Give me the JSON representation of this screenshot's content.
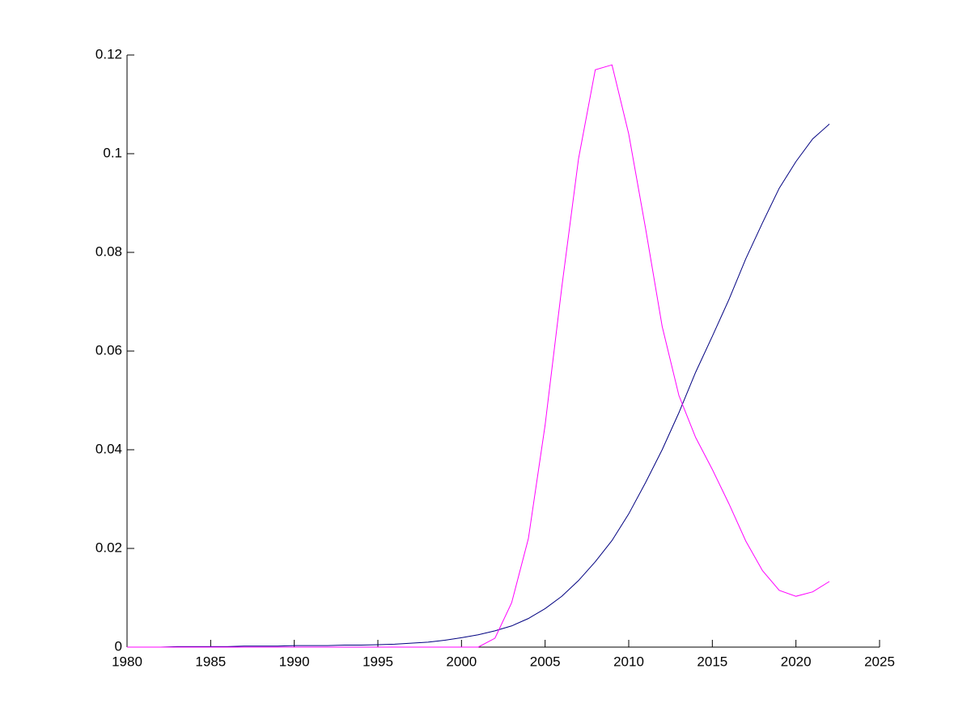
{
  "chart_data": {
    "type": "line",
    "x": [
      1980,
      1981,
      1982,
      1983,
      1984,
      1985,
      1986,
      1987,
      1988,
      1989,
      1990,
      1991,
      1992,
      1993,
      1994,
      1995,
      1996,
      1997,
      1998,
      1999,
      2000,
      2001,
      2002,
      2003,
      2004,
      2005,
      2006,
      2007,
      2008,
      2009,
      2010,
      2011,
      2012,
      2013,
      2014,
      2015,
      2016,
      2017,
      2018,
      2019,
      2020,
      2021,
      2022
    ],
    "series": [
      {
        "color": "#000080",
        "values": [
          0,
          0,
          0,
          0.0001,
          0.0001,
          0.0001,
          0.0001,
          0.0002,
          0.0002,
          0.0002,
          0.0003,
          0.0003,
          0.0003,
          0.0004,
          0.0004,
          0.0005,
          0.0006,
          0.0008,
          0.001,
          0.0014,
          0.0019,
          0.0025,
          0.0033,
          0.0043,
          0.0058,
          0.0078,
          0.0103,
          0.0135,
          0.0173,
          0.0216,
          0.027,
          0.0333,
          0.04,
          0.0475,
          0.0557,
          0.063,
          0.0705,
          0.0787,
          0.086,
          0.093,
          0.0984,
          0.103,
          0.106
        ]
      },
      {
        "color": "#ff00ff",
        "values": [
          0,
          0,
          0,
          0,
          0,
          0,
          0,
          0,
          0,
          0,
          0,
          0,
          0,
          0,
          0,
          0,
          0,
          0,
          0,
          0,
          0,
          0,
          0.0018,
          0.009,
          0.022,
          0.045,
          0.073,
          0.099,
          0.117,
          0.118,
          0.104,
          0.085,
          0.065,
          0.051,
          0.0425,
          0.036,
          0.029,
          0.0215,
          0.0155,
          0.0115,
          0.0103,
          0.0112,
          0.0133
        ]
      }
    ],
    "xlim": [
      1980,
      2025
    ],
    "xticks": [
      1980,
      1985,
      1990,
      1995,
      2000,
      2005,
      2010,
      2015,
      2020,
      2025
    ],
    "ylim": [
      0,
      0.12
    ],
    "yticks": [
      0,
      0.02,
      0.04,
      0.06,
      0.08,
      0.1,
      0.12
    ]
  }
}
